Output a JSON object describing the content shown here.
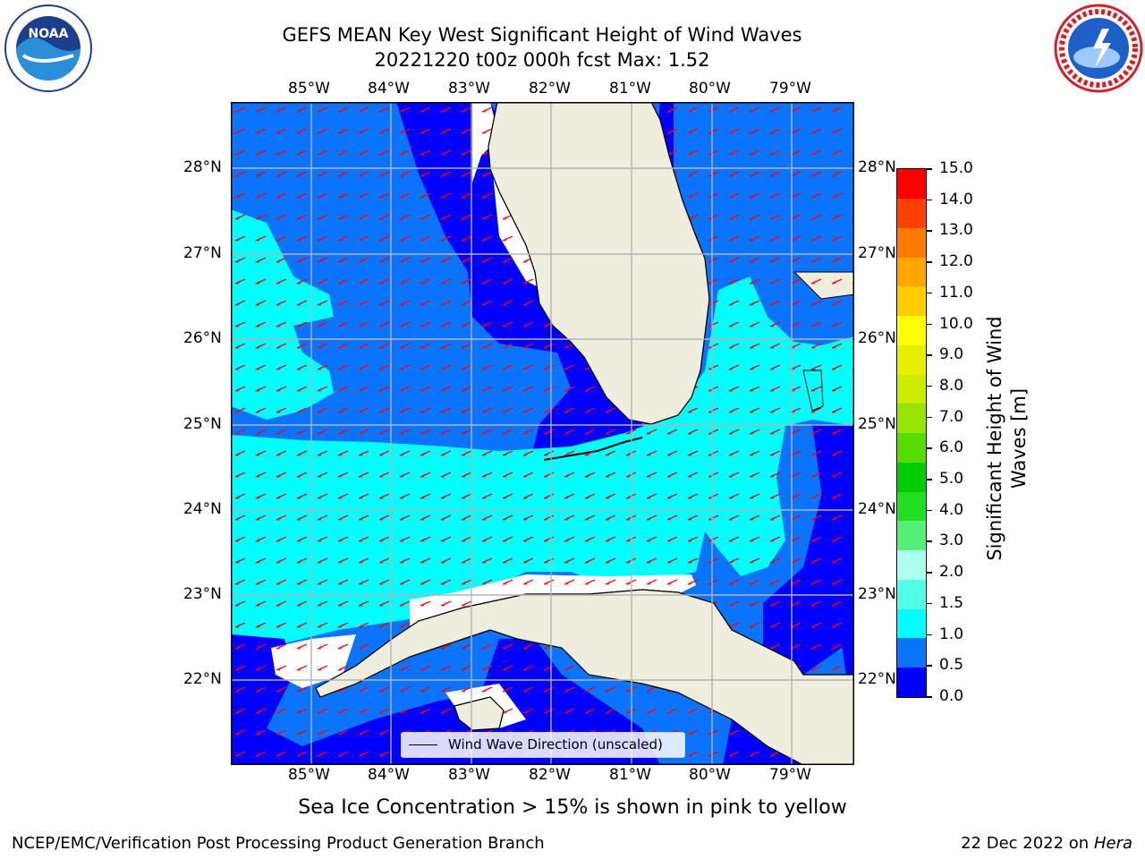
{
  "title_line1": "GEFS MEAN Key West Significant Height of Wind Waves",
  "title_line2": "20221220 t00z 000h fcst   Max: 1.52",
  "lon_labels": [
    "85°W",
    "84°W",
    "83°W",
    "82°W",
    "81°W",
    "80°W",
    "79°W"
  ],
  "lat_labels": [
    "28°N",
    "27°N",
    "26°N",
    "25°N",
    "24°N",
    "23°N",
    "22°N"
  ],
  "legend_label": "Wind Wave Direction (unscaled)",
  "colorbar": {
    "label": "Significant Height of Wind Waves [m]",
    "ticks": [
      "15.0",
      "14.0",
      "13.0",
      "12.0",
      "11.0",
      "10.0",
      "9.0",
      "8.0",
      "7.0",
      "6.0",
      "5.0",
      "4.0",
      "3.0",
      "2.0",
      "1.5",
      "1.0",
      "0.5",
      "0.0"
    ],
    "colors": [
      "#0000ff",
      "#0a74ff",
      "#00ffff",
      "#50ffe6",
      "#aafff0",
      "#55ef78",
      "#22dd22",
      "#00cc00",
      "#55dd00",
      "#99e400",
      "#cceb00",
      "#e8ee00",
      "#ffff00",
      "#ffcc00",
      "#ffa500",
      "#ff7b00",
      "#ff4000",
      "#ff0000"
    ]
  },
  "caption": "Sea Ice Concentration > 15% is shown in pink to yellow",
  "footer_left": "NCEP/EMC/Verification Post Processing Product Generation Branch",
  "footer_right_date": "22 Dec 2022 on",
  "footer_right_host": "Hera",
  "logos": {
    "noaa_text": "NOAA",
    "noaa_ring": "NATIONAL OCEANIC AND ATMOSPHERIC ADMINISTRATION · U.S. DEPARTMENT OF COMMERCE",
    "nws_ring": "NATIONAL WEATHER SERVICE"
  },
  "colors": {
    "deep_blue": "#0000ff",
    "mid_blue": "#0a74ff",
    "cyan": "#00ffff",
    "land": "#efedde",
    "arrow": "#ff0000",
    "grid": "#b4b4b4"
  }
}
